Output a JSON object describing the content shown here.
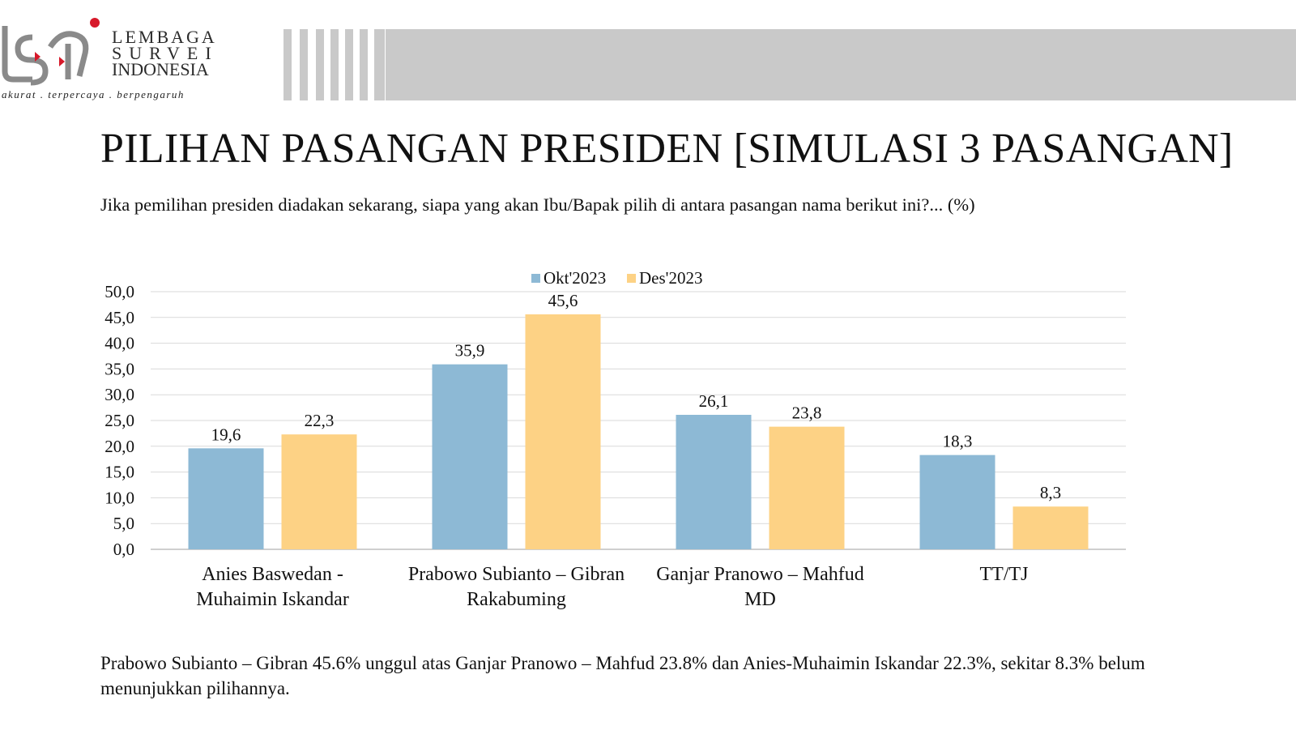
{
  "header": {
    "logo_line1": "LEMBAGA",
    "logo_line2": "SURVEI",
    "logo_line3": "INDONESIA",
    "tagline": "akurat . terpercaya . berpengaruh"
  },
  "title": "PILIHAN PASANGAN PRESIDEN [SIMULASI 3 PASANGAN]",
  "subtitle": "Jika pemilihan presiden diadakan sekarang, siapa yang akan Ibu/Bapak pilih di antara pasangan nama berikut ini?... (%)",
  "footer": {
    "line1": "Prabowo Subianto – Gibran 45.6% unggul atas Ganjar Pranowo – Mahfud 23.8% dan Anies-Muhaimin Iskandar 22.3%, sekitar 8.3% belum",
    "line2": "menunjukkan pilihannya."
  },
  "colors": {
    "okt": "#8db9d5",
    "des": "#fdd285",
    "grid": "#d9d9d9",
    "logo_red": "#d7192a",
    "band": "#c9c9c9"
  },
  "chart_data": {
    "type": "bar",
    "categories": [
      [
        "Anies Baswedan -",
        "Muhaimin Iskandar"
      ],
      [
        "Prabowo Subianto – Gibran",
        "Rakabuming"
      ],
      [
        "Ganjar Pranowo – Mahfud",
        "MD"
      ],
      [
        "TT/TJ"
      ]
    ],
    "series": [
      {
        "name": "Okt'2023",
        "values": [
          19.6,
          35.9,
          26.1,
          18.3
        ],
        "labels": [
          "19,6",
          "35,9",
          "26,1",
          "18,3"
        ]
      },
      {
        "name": "Des'2023",
        "values": [
          22.3,
          45.6,
          23.8,
          8.3
        ],
        "labels": [
          "22,3",
          "45,6",
          "23,8",
          "8,3"
        ]
      }
    ],
    "yticks": [
      "0,0",
      "5,0",
      "10,0",
      "15,0",
      "20,0",
      "25,0",
      "30,0",
      "35,0",
      "40,0",
      "45,0",
      "50,0"
    ],
    "ylim": [
      0,
      50
    ],
    "legend": "top-center",
    "grid": true
  }
}
